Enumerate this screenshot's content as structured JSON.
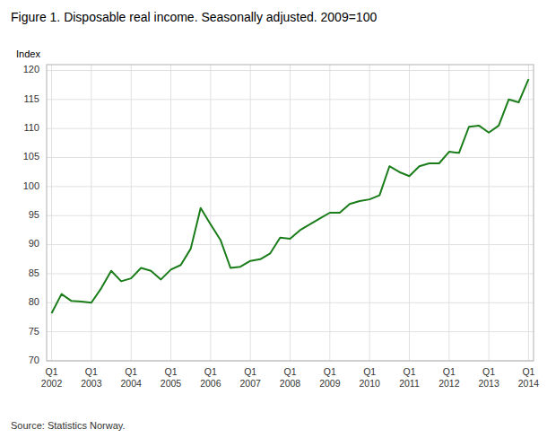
{
  "chart_data": {
    "type": "line",
    "title": "Figure 1. Disposable real income. Seasonally adjusted. 2009=100",
    "ylabel": "Index",
    "source": "Source: Statistics Norway.",
    "color": "#1a7d1a",
    "grid": true,
    "ylim": [
      70,
      121
    ],
    "yticks": [
      70,
      75,
      80,
      85,
      90,
      95,
      100,
      105,
      110,
      115,
      120
    ],
    "categories": [
      "Q1\n2002",
      null,
      null,
      null,
      "Q1\n2003",
      null,
      null,
      null,
      "Q1\n2004",
      null,
      null,
      null,
      "Q1\n2005",
      null,
      null,
      null,
      "Q1\n2006",
      null,
      null,
      null,
      "Q1\n2007",
      null,
      null,
      null,
      "Q1\n2008",
      null,
      null,
      null,
      "Q1\n2009",
      null,
      null,
      null,
      "Q1\n2010",
      null,
      null,
      null,
      "Q1\n2011",
      null,
      null,
      null,
      "Q1\n2012",
      null,
      null,
      null,
      "Q1\n2013",
      null,
      null,
      null,
      "Q1\n2014"
    ],
    "values": [
      78.2,
      81.5,
      80.3,
      80.2,
      80.0,
      82.5,
      85.5,
      83.7,
      84.2,
      86.0,
      85.5,
      84.0,
      85.7,
      86.5,
      89.3,
      96.3,
      93.5,
      90.8,
      86.0,
      86.2,
      87.2,
      87.5,
      88.5,
      91.2,
      91.0,
      92.5,
      93.5,
      94.5,
      95.5,
      95.5,
      97.0,
      97.5,
      97.8,
      98.5,
      103.5,
      102.5,
      101.8,
      103.5,
      104.0,
      104.0,
      106.0,
      105.8,
      110.3,
      110.5,
      109.3,
      110.5,
      115.0,
      114.5,
      118.5
    ]
  }
}
